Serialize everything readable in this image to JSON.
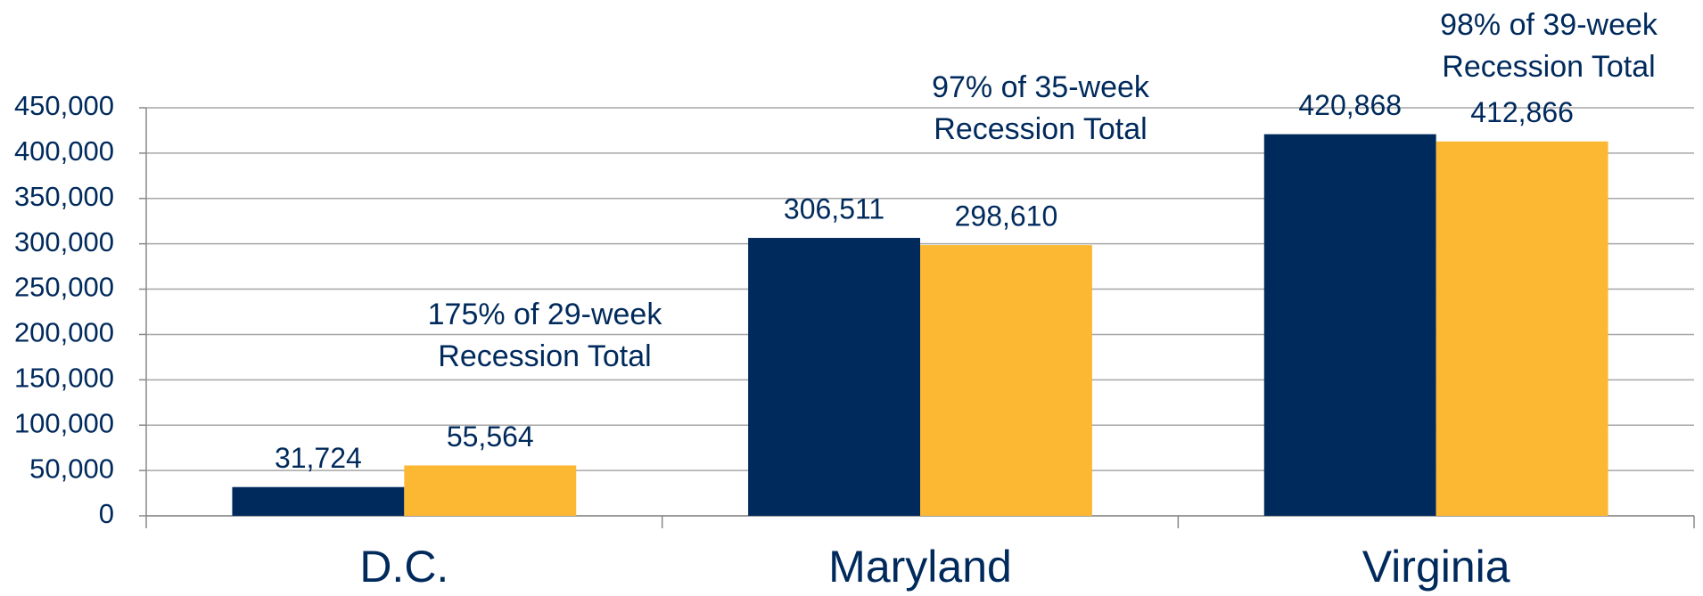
{
  "chart_data": {
    "type": "bar",
    "categories": [
      "D.C.",
      "Maryland",
      "Virginia"
    ],
    "series": [
      {
        "color": "#002a5c",
        "values": [
          31724,
          306511,
          420868
        ],
        "value_labels": [
          "31,724",
          "306,511",
          "420,868"
        ]
      },
      {
        "color": "#fdb833",
        "values": [
          55564,
          298610,
          412866
        ],
        "value_labels": [
          "55,564",
          "298,610",
          "412,866"
        ]
      }
    ],
    "ylim": [
      0,
      450000
    ],
    "yticks": [
      0,
      {
        "value": 50000,
        "label": "50,000"
      },
      {
        "value": 100000,
        "label": "100,000"
      },
      {
        "value": 150000,
        "label": "150,000"
      },
      {
        "value": 200000,
        "label": "200,000"
      },
      {
        "value": 250000,
        "label": "250,000"
      },
      {
        "value": 300000,
        "label": "300,000"
      },
      {
        "value": 350000,
        "label": "350,000"
      },
      {
        "value": 400000,
        "label": "400,000"
      },
      {
        "value": 450000,
        "label": "450,000"
      }
    ],
    "grid": true,
    "annotations": [
      [
        "175% of 29-week",
        "Recession Total"
      ],
      [
        "97% of 35-week",
        "Recession Total"
      ],
      [
        "98% of 39-week",
        "Recession Total"
      ]
    ]
  }
}
